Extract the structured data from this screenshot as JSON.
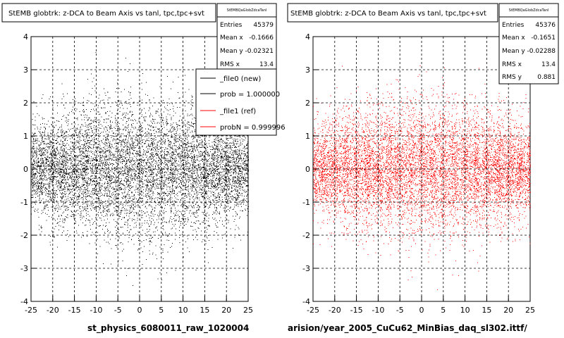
{
  "panels": [
    {
      "title": "StEMB globtrk: z-DCA to Beam Axis vs tanl, tpc,tpc+svt",
      "stats": {
        "header": "StEMBQaGlobZdcaTanl",
        "rows": [
          {
            "label": "Entries",
            "value": "45379"
          },
          {
            "label": "Mean x",
            "value": "-0.1666"
          },
          {
            "label": "Mean y",
            "value": "-0.02321"
          },
          {
            "label": "RMS x",
            "value": "13.4"
          }
        ]
      },
      "legend": {
        "entries": [
          {
            "label": "_file0 (new)",
            "color": "#000000"
          },
          {
            "label": "prob = 1.000000",
            "color": "#000000"
          },
          {
            "label": "_file1 (ref)",
            "color": "#ff0000"
          },
          {
            "label": "probN = 0.999996",
            "color": "#ff0000"
          }
        ]
      },
      "caption": "st_physics_6080011_raw_1020004"
    },
    {
      "title": "StEMB globtrk: z-DCA to Beam Axis vs tanl, tpc,tpc+svt",
      "stats": {
        "header": "StEMBQaGlobZdcaTanl",
        "rows": [
          {
            "label": "Entries",
            "value": "45376"
          },
          {
            "label": "Mean x",
            "value": "-0.1651"
          },
          {
            "label": "Mean y",
            "value": "-0.02288"
          },
          {
            "label": "RMS x",
            "value": "13.4"
          },
          {
            "label": "RMS y",
            "value": "0.881"
          }
        ]
      },
      "caption": "arision/year_2005_CuCu62_MinBias_daq_sl302.ittf/"
    }
  ],
  "chart_data": [
    {
      "type": "scatter",
      "title": "StEMB globtrk: z-DCA to Beam Axis vs tanl, tpc,tpc+svt",
      "xlim": [
        -25,
        25
      ],
      "ylim": [
        -4,
        4
      ],
      "xticks": [
        -25,
        -20,
        -15,
        -10,
        -5,
        0,
        5,
        10,
        15,
        20,
        25
      ],
      "yticks": [
        -4,
        -3,
        -2,
        -1,
        0,
        1,
        2,
        3,
        4
      ],
      "grid": true,
      "marker_color": "#000000",
      "entries": 45379,
      "mean_x": -0.1666,
      "mean_y": -0.02321,
      "rms_x": 13.4
    },
    {
      "type": "scatter",
      "title": "StEMB globtrk: z-DCA to Beam Axis vs tanl, tpc,tpc+svt",
      "xlim": [
        -25,
        25
      ],
      "ylim": [
        -4,
        4
      ],
      "xticks": [
        -25,
        -20,
        -15,
        -10,
        -5,
        0,
        5,
        10,
        15,
        20,
        25
      ],
      "yticks": [
        -4,
        -3,
        -2,
        -1,
        0,
        1,
        2,
        3,
        4
      ],
      "grid": true,
      "marker_color": "#ff0000",
      "entries": 45376,
      "mean_x": -0.1651,
      "mean_y": -0.02288,
      "rms_x": 13.4,
      "rms_y": 0.881
    }
  ]
}
